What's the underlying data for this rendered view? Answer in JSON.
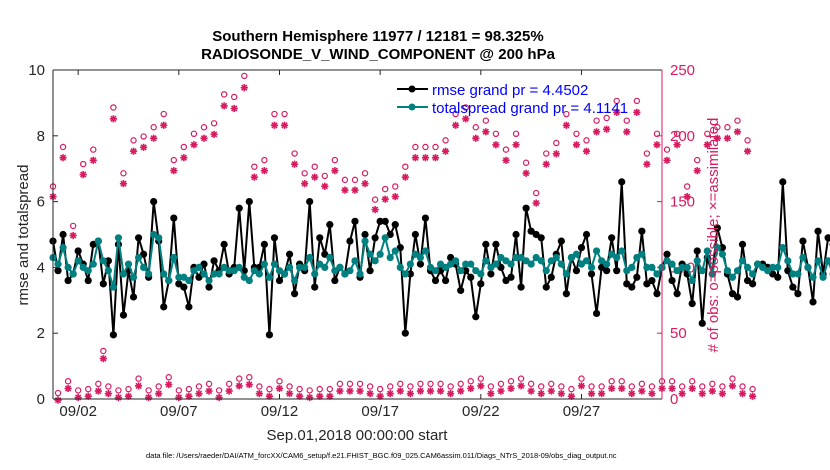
{
  "chart_data": {
    "type": "line",
    "title_line1": "Southern Hemisphere 11977 / 12181 = 98.325%",
    "title_line2": "RADIOSONDE_V_WIND_COMPONENT @ 200 hPa",
    "xlabel": "Sep.01,2018 00:00:00 start",
    "ylabel_left": "rmse and totalspread",
    "ylabel_right": "# of obs: o=possible; ×=assimilated",
    "footnote": "data file: /Users/raeder/DAI/ATM_forcXX/CAM6_setup/f.e21.FHIST_BGC.f09_025.CAM6assim.011/Diags_NTrS_2018-09/obs_diag_output.nc",
    "xlim": [
      0.75,
      31.0
    ],
    "ylim_left": [
      0,
      10
    ],
    "ylim_right": [
      0,
      250
    ],
    "x_ticks": [
      {
        "value": 2,
        "label": "09/02"
      },
      {
        "value": 7,
        "label": "09/07"
      },
      {
        "value": 12,
        "label": "09/12"
      },
      {
        "value": 17,
        "label": "09/17"
      },
      {
        "value": 22,
        "label": "09/22"
      },
      {
        "value": 27,
        "label": "09/27"
      }
    ],
    "y_ticks_left": [
      "0",
      "2",
      "4",
      "6",
      "8",
      "10"
    ],
    "y_ticks_right": [
      "0",
      "50",
      "100",
      "150",
      "200",
      "250"
    ],
    "colors": {
      "rmse": "#000000",
      "spread": "#008080",
      "counts": "#d81b60",
      "legend_text": "#0000ff",
      "right_axis": "#d81b60"
    },
    "legend": [
      {
        "name": "rmse grand pr = 4.4502",
        "series": "rmse"
      },
      {
        "name": "totalspread grand pr = 4.1141",
        "series": "spread"
      }
    ],
    "x_start": 0.75,
    "x_step": 0.25,
    "series": [
      {
        "name": "rmse",
        "axis": "left",
        "values": [
          4.8,
          3.9,
          5.0,
          3.6,
          3.8,
          4.5,
          4.1,
          3.6,
          4.7,
          4.8,
          3.5,
          4.2,
          1.95,
          4.7,
          2.55,
          3.9,
          3.1,
          4.9,
          4.4,
          3.7,
          6.0,
          4.8,
          2.8,
          3.6,
          5.5,
          3.5,
          3.4,
          2.8,
          4.0,
          3.7,
          4.1,
          3.4,
          4.2,
          3.9,
          4.7,
          3.8,
          4.0,
          5.8,
          3.9,
          6.0,
          4.0,
          4.0,
          4.7,
          1.95,
          4.9,
          3.6,
          3.8,
          4.4,
          3.2,
          4.1,
          3.9,
          6.0,
          3.4,
          4.9,
          4.4,
          5.3,
          3.6,
          4.0,
          3.8,
          4.8,
          5.4,
          3.7,
          5.0,
          3.9,
          4.9,
          5.4,
          5.4,
          5.0,
          5.3,
          4.6,
          2.0,
          3.8,
          5.0,
          4.1,
          5.5,
          3.9,
          3.6,
          3.9,
          3.6,
          4.3,
          4.1,
          3.3,
          3.9,
          3.7,
          2.5,
          3.5,
          4.7,
          3.8,
          4.7,
          4.0,
          3.6,
          3.7,
          5.0,
          3.4,
          5.8,
          5.1,
          5.0,
          4.9,
          3.4,
          3.7,
          4.4,
          4.8,
          3.2,
          4.3,
          3.9,
          4.6,
          5.0,
          3.8,
          2.6,
          4.0,
          3.9,
          4.9,
          3.9,
          6.6,
          3.5,
          3.4,
          3.7,
          5.1,
          3.5,
          3.6,
          3.2,
          4.0,
          4.4,
          3.6,
          3.2,
          4.1,
          3.8,
          2.9,
          4.5,
          2.3,
          4.3,
          3.8,
          5.2,
          4.6,
          3.8,
          3.2,
          3.1,
          4.7,
          3.6,
          3.5,
          4.1,
          4.1,
          4.0,
          3.8,
          3.7,
          6.6,
          3.9,
          3.4,
          3.2,
          4.8,
          4.0,
          2.95,
          5.1,
          3.8,
          4.9,
          4.7,
          4.6
        ]
      },
      {
        "name": "totalspread",
        "axis": "left",
        "values": [
          4.3,
          4.1,
          4.6,
          4.0,
          3.8,
          4.2,
          4.0,
          3.9,
          4.1,
          4.8,
          4.2,
          3.9,
          3.4,
          4.9,
          3.8,
          4.1,
          3.7,
          4.3,
          4.0,
          3.8,
          5.0,
          4.9,
          3.8,
          3.6,
          4.3,
          3.7,
          3.7,
          3.6,
          3.9,
          4.0,
          3.8,
          3.6,
          3.8,
          3.8,
          4.0,
          3.9,
          3.9,
          4.0,
          3.7,
          3.6,
          3.9,
          3.8,
          4.1,
          3.7,
          4.1,
          3.9,
          3.8,
          4.0,
          3.6,
          4.0,
          4.0,
          4.3,
          3.8,
          4.1,
          4.0,
          4.3,
          3.9,
          4.0,
          3.8,
          3.9,
          4.2,
          3.8,
          4.8,
          4.4,
          4.2,
          4.4,
          4.9,
          4.3,
          4.5,
          4.0,
          3.8,
          4.1,
          4.4,
          4.3,
          4.5,
          4.0,
          3.9,
          4.1,
          4.0,
          4.1,
          4.2,
          3.9,
          4.1,
          4.1,
          3.9,
          3.8,
          4.2,
          4.0,
          4.1,
          4.3,
          4.2,
          4.1,
          4.3,
          4.3,
          4.2,
          4.1,
          4.3,
          4.2,
          3.9,
          4.2,
          4.3,
          4.1,
          3.8,
          4.3,
          4.4,
          4.1,
          4.2,
          4.0,
          4.5,
          4.2,
          4.1,
          4.4,
          4.3,
          4.5,
          3.9,
          4.0,
          4.3,
          4.4,
          4.0,
          4.0,
          3.8,
          4.0,
          4.2,
          4.1,
          3.9,
          4.0,
          4.0,
          3.6,
          4.2,
          3.9,
          4.5,
          3.8,
          4.6,
          4.4,
          3.9,
          3.7,
          3.9,
          4.2,
          4.0,
          3.8,
          4.1,
          4.0,
          3.9,
          4.0,
          4.0,
          4.6,
          4.2,
          3.8,
          3.8,
          4.3,
          4.0,
          3.7,
          4.2,
          3.7,
          4.2,
          3.8,
          3.6
        ]
      },
      {
        "name": "possible",
        "axis": "right",
        "values": [
          160,
          3,
          190,
          12,
          130,
          5,
          177,
          6,
          188,
          10,
          35,
          8,
          220,
          5,
          170,
          6,
          195,
          14,
          198,
          5,
          205,
          8,
          215,
          15,
          180,
          5,
          190,
          6,
          200,
          8,
          205,
          10,
          208,
          5,
          230,
          10,
          228,
          14,
          244,
          15,
          175,
          8,
          180,
          6,
          215,
          12,
          215,
          8,
          185,
          6,
          170,
          5,
          175,
          6,
          168,
          6,
          180,
          10,
          165,
          10,
          165,
          10,
          170,
          8,
          150,
          6,
          158,
          8,
          160,
          10,
          175,
          8,
          190,
          10,
          190,
          10,
          190,
          10,
          195,
          8,
          215,
          10,
          220,
          12,
          205,
          14,
          210,
          8,
          200,
          10,
          188,
          12,
          200,
          14,
          178,
          10,
          155,
          8,
          185,
          10,
          193,
          8,
          215,
          6,
          200,
          14,
          195,
          8,
          210,
          8,
          212,
          12,
          225,
          12,
          210,
          8,
          225,
          10,
          185,
          8,
          200,
          12,
          188,
          12,
          200,
          8,
          160,
          12,
          180,
          8,
          200,
          10,
          205,
          8,
          205,
          14,
          210,
          8,
          195,
          6
        ],
        "note": "one value per observation time, alternating 00Z (large) and 12Z (small) counts"
      }
    ]
  }
}
